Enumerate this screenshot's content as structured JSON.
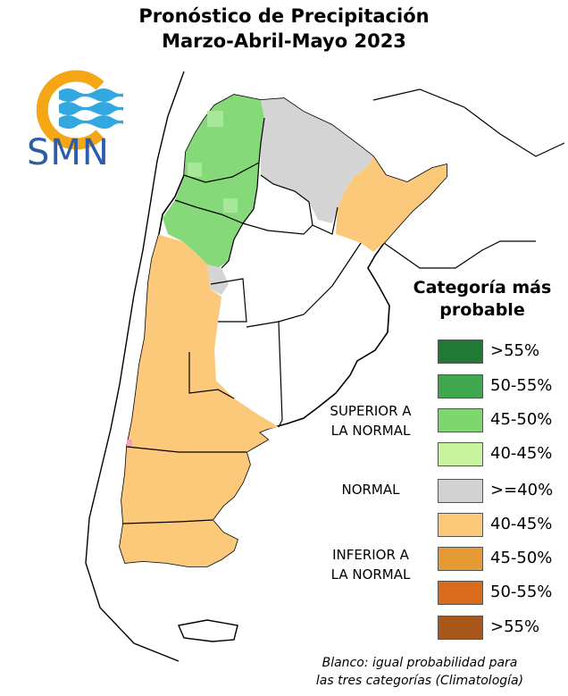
{
  "title": {
    "line1": "Pronóstico de Precipitación",
    "line2": "Marzo-Abril-Mayo 2023"
  },
  "logo": {
    "text": "SMN",
    "colors": {
      "sun": "#f5a614",
      "waves": "#33a7e0",
      "text": "#2b5da8"
    }
  },
  "legend": {
    "title_line1": "Categoría más",
    "title_line2": "probable",
    "groups": [
      {
        "label_line1": "SUPERIOR A",
        "label_line2": "LA NORMAL"
      },
      {
        "label_line1": "NORMAL",
        "label_line2": ""
      },
      {
        "label_line1": "INFERIOR A",
        "label_line2": "LA NORMAL"
      }
    ],
    "items": [
      {
        "label": ">55%",
        "color": "#1e7a34"
      },
      {
        "label": "50-55%",
        "color": "#3fa84f"
      },
      {
        "label": "45-50%",
        "color": "#7dd66e"
      },
      {
        "label": "40-45%",
        "color": "#c8f4a0"
      },
      {
        "label": ">=40%",
        "color": "#d2d2d2"
      },
      {
        "label": "40-45%",
        "color": "#fcc97a"
      },
      {
        "label": "45-50%",
        "color": "#e59a33"
      },
      {
        "label": "50-55%",
        "color": "#d96b1a"
      },
      {
        "label": ">55%",
        "color": "#a9561a"
      }
    ]
  },
  "note": {
    "line1": "Blanco: igual probabilidad para",
    "line2": "las tres categorías (Climatología)"
  },
  "map_colors": {
    "green": "#86d978",
    "green_light": "#a8e69a",
    "gray": "#d4d4d4",
    "orange": "#fcc97a",
    "pink": "#f2a0c0",
    "border": "#000000"
  }
}
